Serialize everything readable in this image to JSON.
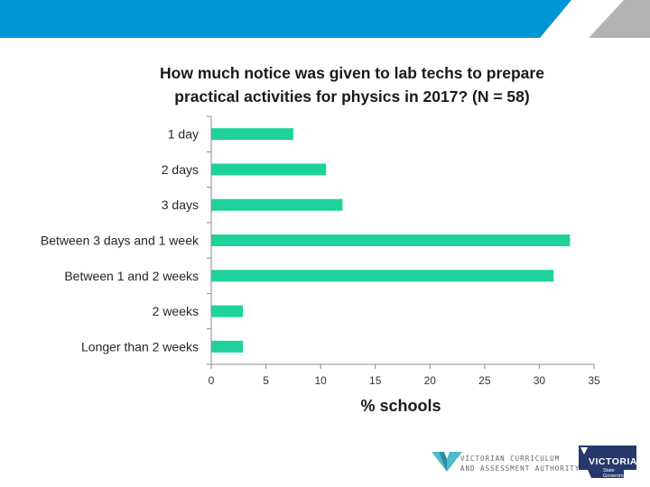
{
  "colors": {
    "banner_blue": "#0096d6",
    "banner_grey": "#b3b3b3",
    "bar": "#1fd19b",
    "vcaa_teal": "#4fb9c9",
    "vic_navy": "#253a6a"
  },
  "chart_data": {
    "type": "bar",
    "orientation": "horizontal",
    "title": "How much notice was given to lab techs to prepare practical activities for physics in 2017? (N = 58)",
    "title_lines": [
      "How much notice was given to lab techs to prepare",
      "practical activities for physics in 2017? (N = 58)"
    ],
    "categories": [
      "1 day",
      "2 days",
      "3 days",
      "Between 3 days and 1 week",
      "Between 1 and 2 weeks",
      "2 weeks",
      "Longer than 2 weeks"
    ],
    "values": [
      7.5,
      10.5,
      12.0,
      32.8,
      31.3,
      2.9,
      2.9
    ],
    "xlabel": "% schools",
    "xlim": [
      0,
      35
    ],
    "xticks": [
      0,
      5,
      10,
      15,
      20,
      25,
      30,
      35
    ],
    "grid": false,
    "legend": "none"
  },
  "footer": {
    "vcaa_line1": "VICTORIAN CURRICULUM",
    "vcaa_line2": "AND ASSESSMENT AUTHORITY",
    "vic_wordmark": "VICTORIA",
    "vic_subtext": "State\nGovernment"
  }
}
